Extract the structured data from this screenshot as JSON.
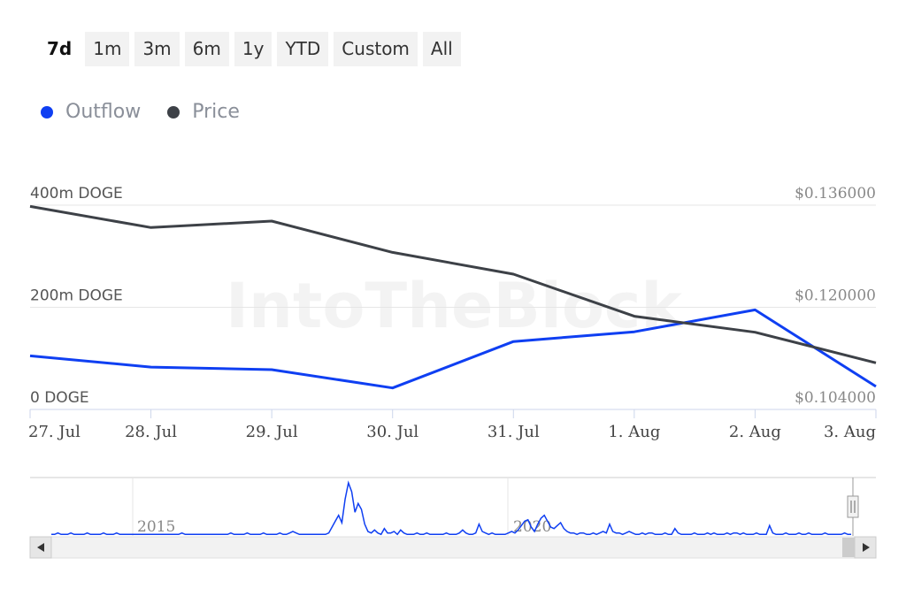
{
  "range_selector": {
    "buttons": [
      {
        "label": "7d",
        "active": true
      },
      {
        "label": "1m",
        "active": false
      },
      {
        "label": "3m",
        "active": false
      },
      {
        "label": "6m",
        "active": false
      },
      {
        "label": "1y",
        "active": false
      },
      {
        "label": "YTD",
        "active": false
      },
      {
        "label": "Custom",
        "active": false
      },
      {
        "label": "All",
        "active": false
      }
    ]
  },
  "legend": [
    {
      "name": "Outflow",
      "color": "#0f3ff2"
    },
    {
      "name": "Price",
      "color": "#3d4147"
    }
  ],
  "watermark": "IntoTheBlock",
  "chart_data": {
    "type": "line",
    "categories": [
      "27. Jul",
      "28. Jul",
      "29. Jul",
      "30. Jul",
      "31. Jul",
      "1. Aug",
      "2. Aug",
      "3. Aug"
    ],
    "left_axis": {
      "ticks": [
        "0 DOGE",
        "200m DOGE",
        "400m DOGE"
      ],
      "ylim": [
        0,
        400000000
      ]
    },
    "right_axis": {
      "ticks": [
        "$0.104000",
        "$0.120000",
        "$0.136000"
      ],
      "ylim": [
        0.104,
        0.136
      ]
    },
    "series": [
      {
        "name": "Outflow",
        "axis": "left",
        "color": "#0f3ff2",
        "values": [
          105000000,
          83000000,
          78000000,
          42000000,
          133000000,
          152000000,
          195000000,
          45000000
        ]
      },
      {
        "name": "Price",
        "axis": "right",
        "color": "#3d4147",
        "values": [
          0.1358,
          0.1325,
          0.1335,
          0.1286,
          0.1252,
          0.1186,
          0.1161,
          0.1113
        ]
      }
    ],
    "grid": true,
    "legend_position": "top-left"
  },
  "navigator": {
    "year_labels": [
      "2015",
      "2020"
    ],
    "color": "#0f3ff2",
    "values": [
      1,
      1,
      2,
      1,
      1,
      1,
      2,
      1,
      1,
      1,
      1,
      2,
      1,
      1,
      1,
      1,
      2,
      1,
      1,
      1,
      2,
      1,
      1,
      1,
      1,
      1,
      1,
      1,
      1,
      1,
      1,
      1,
      1,
      1,
      1,
      1,
      1,
      1,
      1,
      1,
      2,
      1,
      1,
      1,
      1,
      1,
      1,
      1,
      1,
      1,
      1,
      1,
      1,
      1,
      1,
      2,
      1,
      1,
      1,
      1,
      2,
      1,
      1,
      1,
      1,
      2,
      1,
      1,
      1,
      1,
      2,
      1,
      1,
      2,
      3,
      2,
      1,
      1,
      1,
      1,
      1,
      1,
      1,
      1,
      1,
      2,
      6,
      10,
      14,
      9,
      25,
      36,
      30,
      16,
      22,
      18,
      8,
      3,
      2,
      4,
      2,
      1,
      5,
      2,
      2,
      3,
      1,
      4,
      2,
      1,
      1,
      1,
      2,
      1,
      1,
      2,
      1,
      1,
      1,
      1,
      1,
      2,
      1,
      1,
      1,
      2,
      4,
      2,
      1,
      1,
      2,
      8,
      3,
      2,
      1,
      2,
      1,
      1,
      1,
      1,
      2,
      3,
      2,
      4,
      7,
      10,
      11,
      6,
      3,
      8,
      12,
      14,
      10,
      6,
      5,
      7,
      9,
      5,
      3,
      2,
      2,
      1,
      2,
      2,
      1,
      1,
      2,
      1,
      2,
      3,
      2,
      8,
      3,
      2,
      2,
      1,
      2,
      3,
      2,
      1,
      1,
      2,
      1,
      2,
      2,
      1,
      1,
      1,
      2,
      1,
      1,
      5,
      2,
      1,
      1,
      1,
      1,
      2,
      1,
      1,
      1,
      2,
      1,
      2,
      1,
      1,
      1,
      2,
      1,
      2,
      2,
      1,
      2,
      1,
      1,
      1,
      2,
      1,
      1,
      1,
      7,
      2,
      1,
      1,
      1,
      2,
      1,
      1,
      1,
      2,
      1,
      1,
      2,
      1,
      1,
      1,
      1,
      2,
      1,
      1,
      1,
      1,
      1,
      2,
      1,
      1
    ]
  }
}
